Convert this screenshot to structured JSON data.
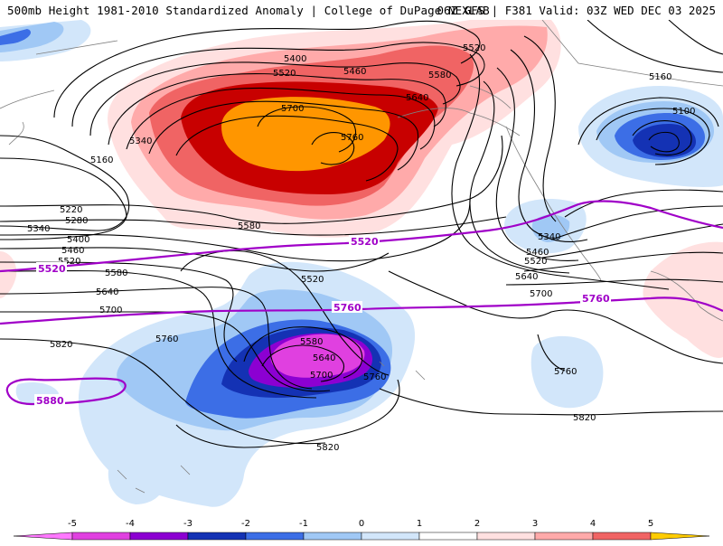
{
  "header": {
    "title": "500mb Height 1981-2010 Standardized Anomaly | College of DuPage NEXLAB",
    "run_info": "06Z GFS | F381 Valid: 03Z WED DEC 03 2025"
  },
  "contours_black": [
    "5160",
    "5220",
    "5280",
    "5340",
    "5400",
    "5460",
    "5520",
    "5580",
    "5640",
    "5700",
    "5760",
    "5820"
  ],
  "contour_labels": {
    "c5400_top": "5400",
    "c5520_top": "5520",
    "c5460_top": "5460",
    "c5520_top2": "5520",
    "c5580_top": "5580",
    "c5640_top": "5640",
    "c5700_top": "5700",
    "c5760_top": "5760",
    "c5340_left": "5340",
    "c5160_left": "5160",
    "c5220_left": "5220",
    "c5280_left": "5280",
    "c5340_left2": "5340",
    "c5400_left": "5400",
    "c5460_left": "5460",
    "c5520_left": "5520",
    "c5580_left": "5580",
    "c5580_mid": "5580",
    "c5640_left": "5640",
    "c5700_left": "5700",
    "c5760_left": "5760",
    "c5820_left": "5820",
    "c5520_low": "5520",
    "c5580_low": "5580",
    "c5640_low": "5640",
    "c5700_low": "5700",
    "c5760_low": "5760",
    "c5820_bot": "5820",
    "c5160_ne": "5160",
    "c5100_ne": "5100",
    "c5340_e": "5340",
    "c5460_e": "5460",
    "c5520_e": "5520",
    "c5640_e": "5640",
    "c5700_e": "5700",
    "c5760_e": "5760",
    "c5820_e": "5820"
  },
  "purple_labels": {
    "p5520_w": "5520",
    "p5520_c": "5520",
    "p5760_c": "5760",
    "p5760_e": "5760",
    "p5880": "5880"
  },
  "colorbar": {
    "ticks": [
      "-5",
      "-4",
      "-3",
      "-2",
      "-1",
      "0",
      "1",
      "2",
      "3",
      "4",
      "5"
    ],
    "colors": [
      "#e040e0",
      "#8c00d2",
      "#1432b4",
      "#3c6ee6",
      "#a0c8f5",
      "#d2e6fa",
      "#ffffff",
      "#ffe0e0",
      "#ffaaaa",
      "#f06464",
      "#c80000",
      "#ff9600"
    ],
    "edge_colors": {
      "left": "#ff78ff",
      "right": "#ffcc00"
    }
  },
  "colors": {
    "anom_pos_1": "#ffe0e0",
    "anom_pos_2": "#ffaaaa",
    "anom_pos_3": "#f06464",
    "anom_pos_4": "#c80000",
    "anom_pos_5": "#ff9600",
    "anom_neg_1": "#d2e6fa",
    "anom_neg_2": "#a0c8f5",
    "anom_neg_3": "#3c6ee6",
    "anom_neg_4": "#1432b4",
    "anom_neg_5": "#8c00d2",
    "anom_neg_6": "#e040e0",
    "contour": "#000000",
    "climo": "#a000c8",
    "coast": "#888888"
  }
}
